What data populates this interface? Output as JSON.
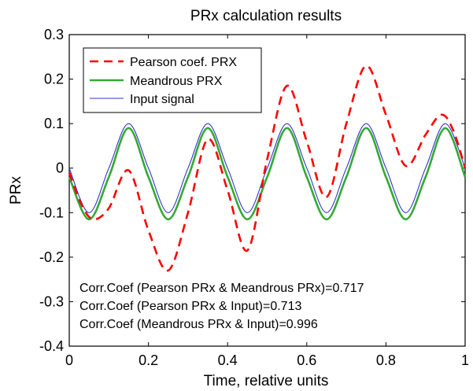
{
  "chart_data": {
    "type": "line",
    "title": "PRx calculation results",
    "xlabel": "Time, relative units",
    "ylabel": "PRx",
    "xlim": [
      0,
      1
    ],
    "ylim": [
      -0.4,
      0.3
    ],
    "x_ticks": [
      0,
      0.2,
      0.4,
      0.6,
      0.8,
      1
    ],
    "x_tick_labels": [
      "0",
      "0.2",
      "0.4",
      "0.6",
      "0.8",
      "1"
    ],
    "y_ticks": [
      -0.4,
      -0.3,
      -0.2,
      -0.1,
      0,
      0.1,
      0.2,
      0.3
    ],
    "y_tick_labels": [
      "-0.4",
      "-0.3",
      "-0.2",
      "-0.1",
      "0",
      "0.1",
      "0.2",
      "0.3"
    ],
    "grid": false,
    "legend_position": "top-left",
    "series": [
      {
        "name": "Pearson coef. PRX",
        "color": "#ff0000",
        "style": "dashed",
        "x": [
          0,
          0.03,
          0.06,
          0.1,
          0.15,
          0.2,
          0.25,
          0.3,
          0.35,
          0.4,
          0.45,
          0.5,
          0.55,
          0.6,
          0.65,
          0.7,
          0.75,
          0.8,
          0.85,
          0.9,
          0.94,
          0.97,
          1
        ],
        "y": [
          -0.01,
          -0.08,
          -0.115,
          -0.09,
          -0.005,
          -0.14,
          -0.23,
          -0.1,
          0.065,
          -0.05,
          -0.185,
          0.02,
          0.185,
          0.06,
          -0.065,
          0.1,
          0.23,
          0.12,
          0.005,
          0.075,
          0.12,
          0.085,
          0.0
        ]
      },
      {
        "name": "Meandrous PRX",
        "color": "#33aa33",
        "style": "solid",
        "x": [
          0,
          0.05,
          0.1,
          0.15,
          0.2,
          0.25,
          0.3,
          0.35,
          0.4,
          0.45,
          0.5,
          0.55,
          0.6,
          0.65,
          0.7,
          0.75,
          0.8,
          0.85,
          0.9,
          0.95,
          1
        ],
        "y": [
          -0.02,
          -0.115,
          -0.02,
          0.09,
          -0.02,
          -0.115,
          -0.02,
          0.09,
          -0.02,
          -0.115,
          -0.02,
          0.09,
          -0.02,
          -0.115,
          -0.02,
          0.09,
          -0.02,
          -0.115,
          -0.02,
          0.09,
          -0.02
        ]
      },
      {
        "name": "Input signal",
        "color": "#3333cc",
        "style": "solid",
        "x": [
          0,
          0.05,
          0.1,
          0.15,
          0.2,
          0.25,
          0.3,
          0.35,
          0.4,
          0.45,
          0.5,
          0.55,
          0.6,
          0.65,
          0.7,
          0.75,
          0.8,
          0.85,
          0.9,
          0.95,
          1
        ],
        "y": [
          0,
          -0.1,
          0,
          0.1,
          0,
          -0.1,
          0,
          0.1,
          0,
          -0.1,
          0,
          0.1,
          0,
          -0.1,
          0,
          0.1,
          0,
          -0.1,
          0,
          0.1,
          0
        ]
      }
    ],
    "annotations": [
      "Corr.Coef (Pearson PRx & Meandrous PRx)=0.717",
      "Corr.Coef (Pearson PRx & Input)=0.713",
      "Corr.Coef (Meandrous PRx & Input)=0.996"
    ]
  }
}
